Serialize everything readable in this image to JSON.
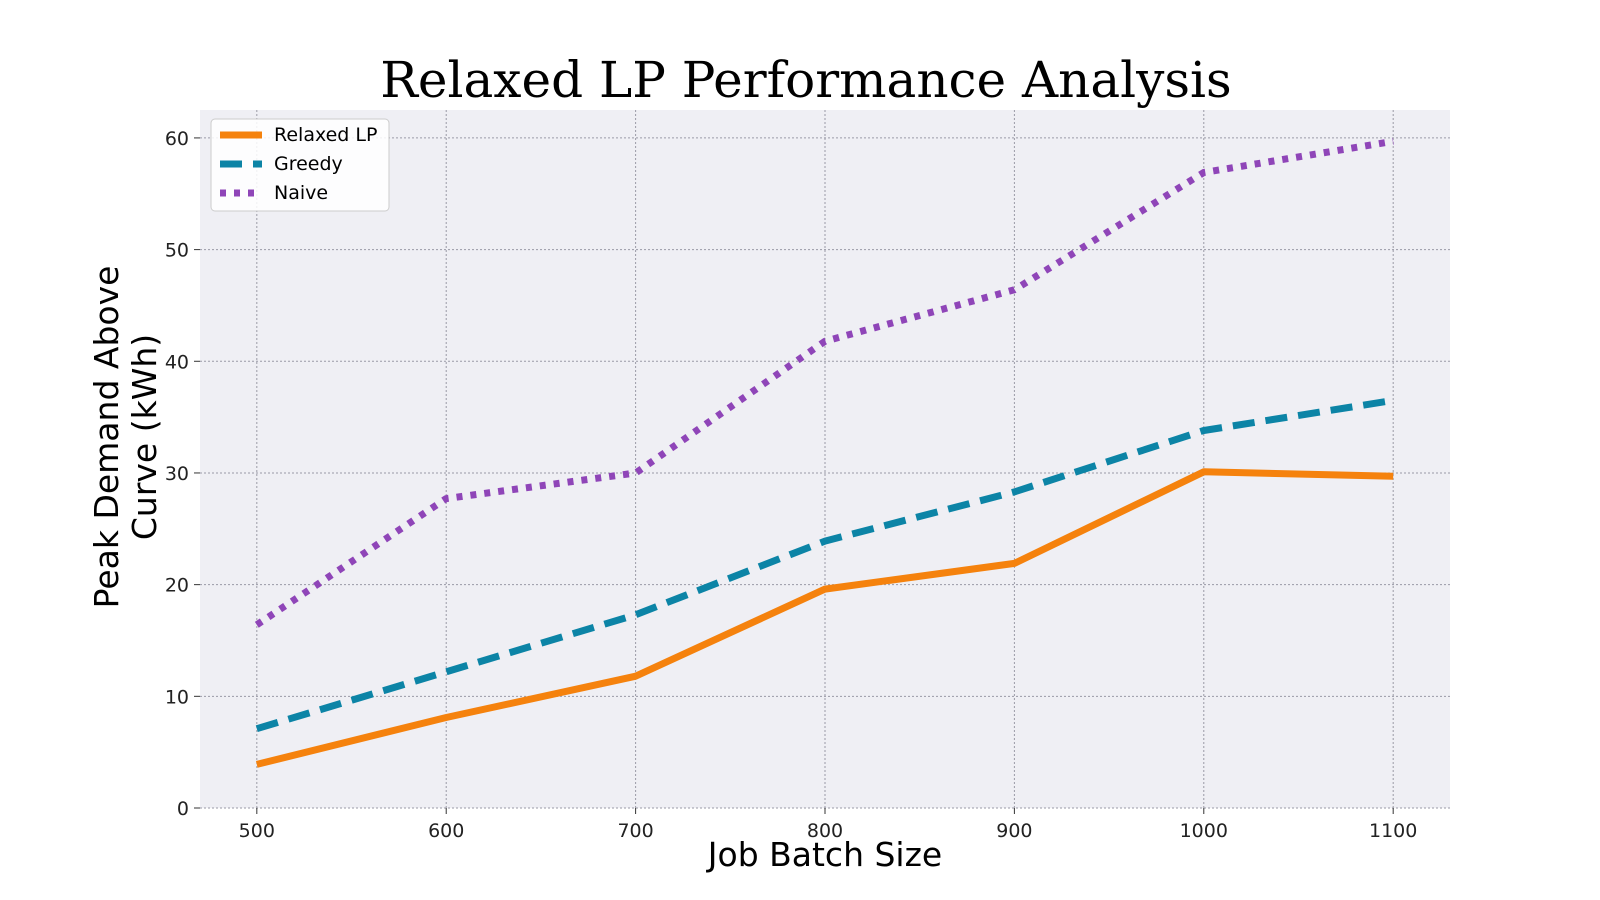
{
  "chart_data": {
    "type": "line",
    "title": "Relaxed LP Performance Analysis",
    "xlabel": "Job Batch Size",
    "ylabel_line1": "Peak Demand Above",
    "ylabel_line2": "Curve (kWh)",
    "x": [
      500,
      600,
      700,
      800,
      900,
      1000,
      1100
    ],
    "x_ticks": [
      "500",
      "600",
      "700",
      "800",
      "900",
      "1000",
      "1100"
    ],
    "xlim": [
      470,
      1130
    ],
    "y_ticks": [
      "0",
      "10",
      "20",
      "30",
      "40",
      "50",
      "60"
    ],
    "ylim": [
      0,
      62.5
    ],
    "grid": true,
    "legend_position": "top-left",
    "series": [
      {
        "name": "Relaxed LP",
        "values": [
          3.9,
          8.1,
          11.8,
          19.6,
          21.9,
          30.1,
          29.7
        ],
        "color": "#f5820d",
        "style": "solid"
      },
      {
        "name": "Greedy",
        "values": [
          7.1,
          12.2,
          17.3,
          23.9,
          28.3,
          33.8,
          36.5
        ],
        "color": "#0c84a6",
        "style": "dashed"
      },
      {
        "name": "Naive",
        "values": [
          16.4,
          27.7,
          30.0,
          41.8,
          46.4,
          56.9,
          59.7
        ],
        "color": "#8f45b8",
        "style": "dotted"
      }
    ]
  }
}
